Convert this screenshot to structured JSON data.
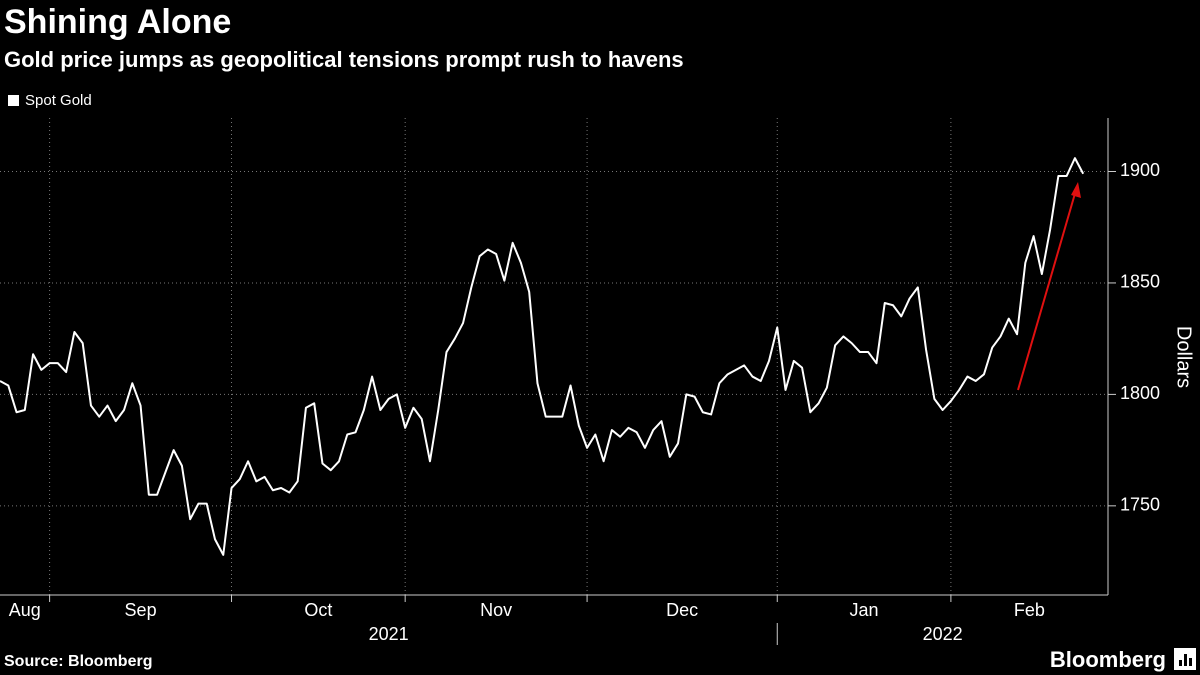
{
  "chart_data": {
    "type": "line",
    "title": "Shining Alone",
    "subtitle": "Gold price jumps as geopolitical tensions prompt rush to havens",
    "y_label": "Dollars",
    "source": "Source: Bloomberg",
    "brand": "Bloomberg",
    "series": [
      {
        "name": "Spot Gold",
        "color": "#ffffff",
        "values": [
          1806,
          1804,
          1792,
          1793,
          1818,
          1811,
          1814,
          1814,
          1810,
          1828,
          1823,
          1795,
          1790,
          1795,
          1788,
          1793,
          1805,
          1795,
          1755,
          1755,
          1765,
          1775,
          1768,
          1744,
          1751,
          1751,
          1735,
          1728,
          1758,
          1762,
          1770,
          1761,
          1763,
          1757,
          1758,
          1756,
          1761,
          1794,
          1796,
          1769,
          1766,
          1770,
          1782,
          1783,
          1793,
          1808,
          1793,
          1798,
          1800,
          1785,
          1794,
          1789,
          1770,
          1793,
          1819,
          1825,
          1832,
          1848,
          1862,
          1865,
          1863,
          1851,
          1868,
          1859,
          1846,
          1805,
          1790,
          1790,
          1790,
          1804,
          1786,
          1776,
          1782,
          1770,
          1784,
          1781,
          1785,
          1783,
          1776,
          1784,
          1788,
          1772,
          1778,
          1800,
          1799,
          1792,
          1791,
          1805,
          1809,
          1811,
          1813,
          1808,
          1806,
          1815,
          1830,
          1802,
          1815,
          1812,
          1792,
          1796,
          1803,
          1822,
          1826,
          1823,
          1819,
          1819,
          1814,
          1841,
          1840,
          1835,
          1843,
          1848,
          1820,
          1798,
          1793,
          1797,
          1802,
          1808,
          1806,
          1809,
          1821,
          1826,
          1834,
          1827,
          1859,
          1871,
          1854,
          1874,
          1898,
          1898,
          1906,
          1899
        ]
      }
    ],
    "xlim": [
      0,
      134
    ],
    "xticks": [
      6,
      28,
      49,
      71,
      94,
      115
    ],
    "x_labels": [
      "Aug",
      "Sep",
      "Oct",
      "Nov",
      "Dec",
      "Jan",
      "Feb"
    ],
    "year_labels": [
      "2021",
      "2022"
    ],
    "year_break": 94,
    "ylim": [
      1710,
      1924
    ],
    "yticks": [
      1750,
      1800,
      1850,
      1900
    ],
    "grid": true
  }
}
